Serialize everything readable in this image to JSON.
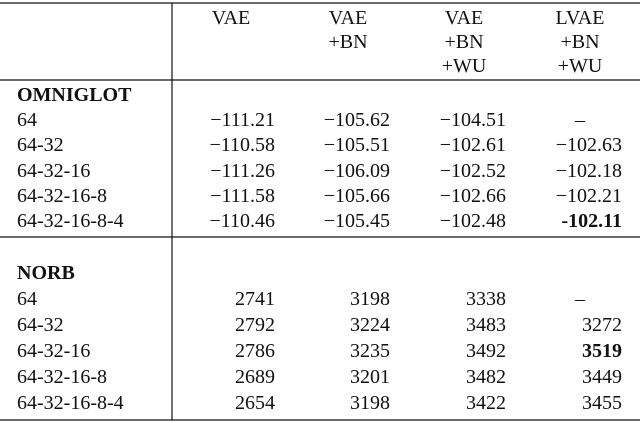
{
  "table": {
    "header": [
      [
        "VAE"
      ],
      [
        "VAE",
        "+BN"
      ],
      [
        "VAE",
        "+BN",
        "+WU"
      ],
      [
        "LVAE",
        "+BN",
        "+WU"
      ]
    ],
    "sections": [
      {
        "title": "OMNIGLOT",
        "rows": [
          [
            "64",
            "−111.21",
            "−105.62",
            "−104.51",
            "–"
          ],
          [
            "64-32",
            "−110.58",
            "−105.51",
            "−102.61",
            "−102.63"
          ],
          [
            "64-32-16",
            "−111.26",
            "−106.09",
            "−102.52",
            "−102.18"
          ],
          [
            "64-32-16-8",
            "−111.58",
            "−105.66",
            "−102.66",
            "−102.21"
          ],
          [
            "64-32-16-8-4",
            "−110.46",
            "−105.45",
            "−102.48",
            "-102.11"
          ]
        ]
      },
      {
        "title": "NORB",
        "rows": [
          [
            "64",
            "2741",
            "3198",
            "3338",
            "–"
          ],
          [
            "64-32",
            "2792",
            "3224",
            "3483",
            "3272"
          ],
          [
            "64-32-16",
            "2786",
            "3235",
            "3492",
            "3519"
          ],
          [
            "64-32-16-8",
            "2689",
            "3201",
            "3482",
            "3449"
          ],
          [
            "64-32-16-8-4",
            "2654",
            "3198",
            "3422",
            "3455"
          ]
        ]
      }
    ]
  }
}
